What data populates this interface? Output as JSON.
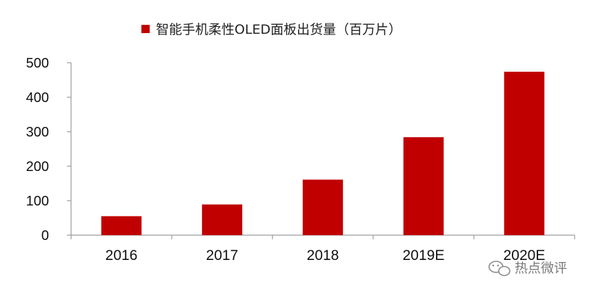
{
  "chart_data": {
    "type": "bar",
    "legend": "智能手机柔性OLED面板出货量（百万片）",
    "categories": [
      "2016",
      "2017",
      "2018",
      "2019E",
      "2020E"
    ],
    "series": [
      {
        "name": "智能手机柔性OLED面板出货量（百万片）",
        "values": [
          55,
          89,
          161,
          284,
          474
        ]
      }
    ],
    "ylim": [
      0,
      500
    ],
    "yticks": [
      0,
      100,
      200,
      300,
      400,
      500
    ],
    "grid": false,
    "legend_position": "top-center",
    "bar_color": "#c00000"
  },
  "watermark": {
    "text": "热点微评"
  }
}
